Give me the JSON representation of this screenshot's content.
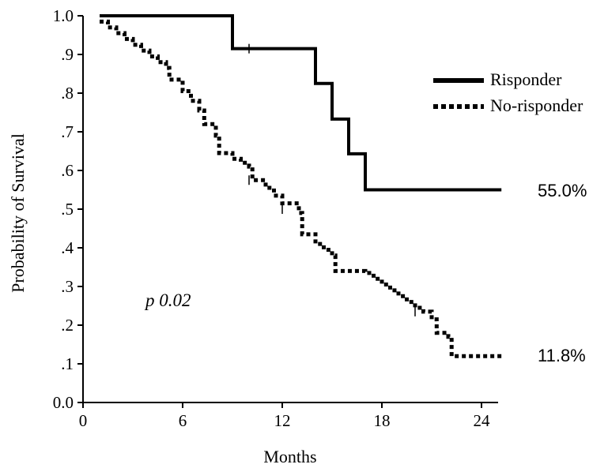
{
  "chart_data": {
    "type": "line",
    "step": true,
    "xlabel": "Months",
    "ylabel": "Probability of Survival",
    "xlim": [
      0,
      25
    ],
    "ylim": [
      0,
      1
    ],
    "x_ticks": [
      0,
      6,
      12,
      18,
      24
    ],
    "x_tick_labels": [
      "0",
      "6",
      "12",
      "18",
      "24"
    ],
    "y_ticks": [
      0,
      0.1,
      0.2,
      0.3,
      0.4,
      0.5,
      0.6,
      0.7,
      0.8,
      0.9,
      1.0
    ],
    "y_tick_labels": [
      "0.0",
      ".1",
      ".2",
      ".3",
      ".4",
      ".5",
      ".6",
      ".7",
      ".8",
      ".9",
      "1.0"
    ],
    "grid": false,
    "legend_position": "top-right",
    "annotations": {
      "pvalue": "p 0.02"
    },
    "series": [
      {
        "name": "Risponder",
        "style": "solid",
        "color": "#000000",
        "end_label": "55.0%",
        "x": [
          1,
          9,
          14,
          15,
          16,
          17,
          25.2
        ],
        "y": [
          1.0,
          0.915,
          0.825,
          0.733,
          0.643,
          0.55,
          0.55
        ],
        "censored": [
          {
            "x": 10,
            "y": 0.915
          }
        ]
      },
      {
        "name": "No-risponder",
        "style": "dotted",
        "color": "#000000",
        "end_label": "11.8%",
        "x": [
          1,
          1.5,
          2,
          2.5,
          3,
          3.5,
          4,
          4.5,
          5,
          5.2,
          6,
          6.5,
          7,
          7.3,
          8,
          8.2,
          9,
          9.5,
          10,
          10.2,
          11,
          11.5,
          12,
          13,
          13.2,
          14,
          14.5,
          15,
          15.2,
          16,
          17,
          17.5,
          18,
          18.5,
          19,
          19.5,
          20,
          20.5,
          21,
          21.3,
          22,
          22.2,
          25.2
        ],
        "y": [
          0.985,
          0.97,
          0.955,
          0.94,
          0.925,
          0.91,
          0.895,
          0.88,
          0.865,
          0.835,
          0.805,
          0.78,
          0.755,
          0.72,
          0.69,
          0.645,
          0.63,
          0.62,
          0.61,
          0.575,
          0.555,
          0.535,
          0.515,
          0.49,
          0.435,
          0.41,
          0.395,
          0.38,
          0.34,
          0.34,
          0.335,
          0.32,
          0.305,
          0.29,
          0.275,
          0.26,
          0.245,
          0.235,
          0.215,
          0.18,
          0.17,
          0.12,
          0.12
        ],
        "censored": [
          {
            "x": 10,
            "y": 0.575
          },
          {
            "x": 12,
            "y": 0.5
          },
          {
            "x": 20,
            "y": 0.235
          }
        ]
      }
    ]
  }
}
